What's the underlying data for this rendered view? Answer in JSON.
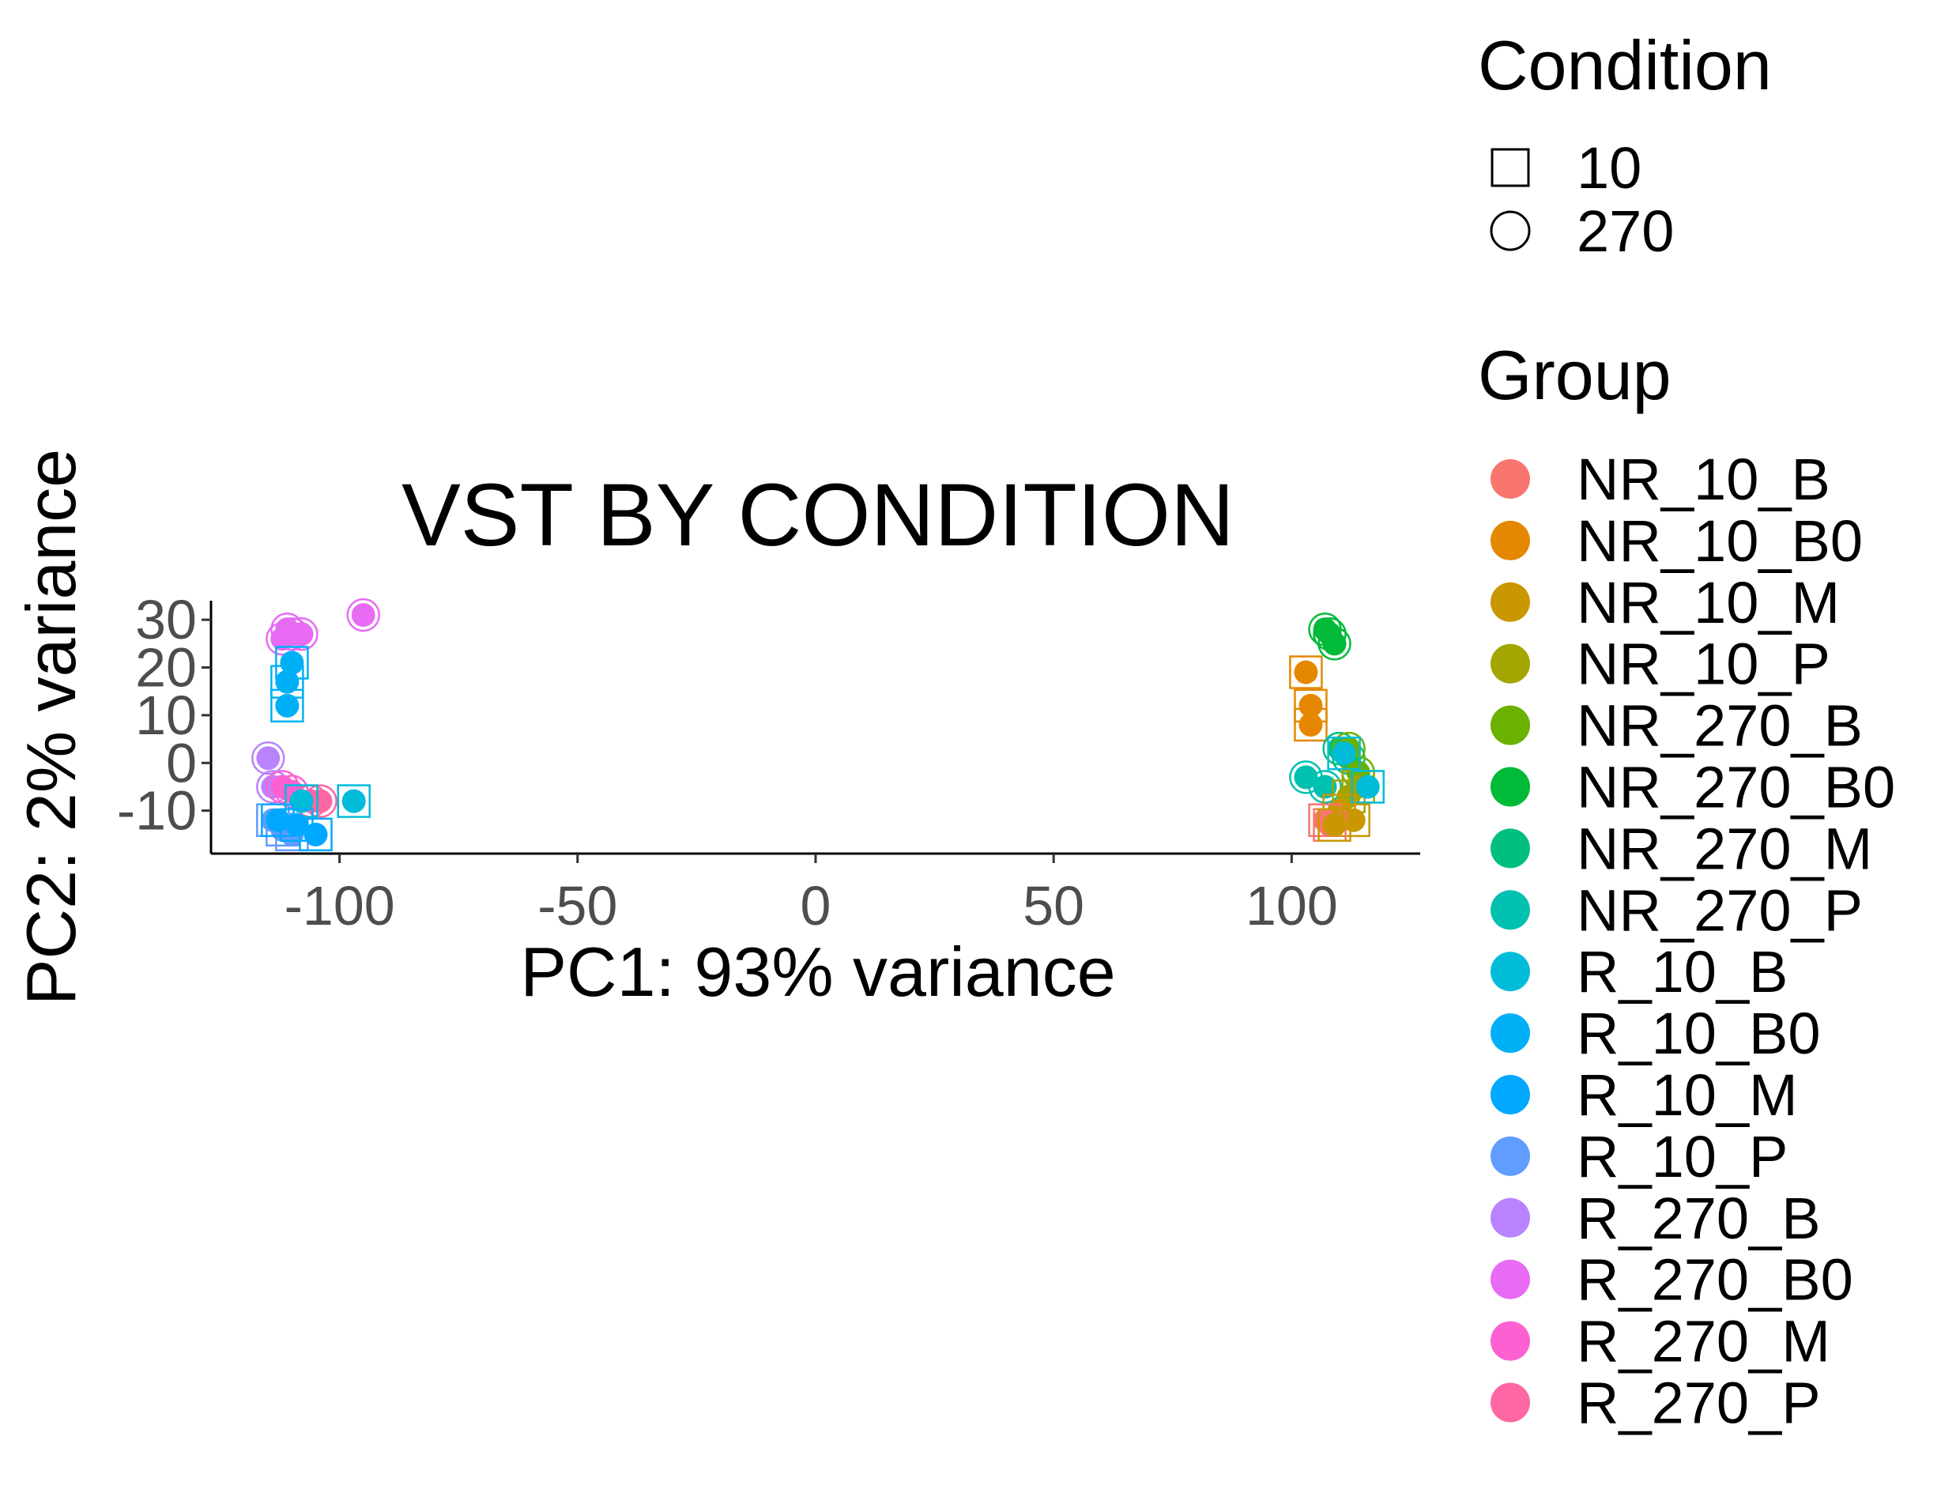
{
  "chart_data": {
    "type": "scatter",
    "title": "VST BY CONDITION",
    "xlabel": "PC1: 93% variance",
    "ylabel": "PC2: 2% variance",
    "xlim": [
      -127,
      127
    ],
    "ylim": [
      -19,
      34
    ],
    "xticks": [
      -100,
      -50,
      0,
      50,
      100
    ],
    "yticks": [
      -10,
      0,
      10,
      20,
      30
    ],
    "xtick_labels": [
      "-100",
      "-50",
      "0",
      "50",
      "100"
    ],
    "ytick_labels": [
      "-10",
      "0",
      "10",
      "20",
      "30"
    ],
    "grid": false,
    "legend_position": "right",
    "legend_condition": {
      "title": "Condition",
      "items": [
        {
          "label": "10",
          "shape": "square"
        },
        {
          "label": "270",
          "shape": "circle"
        }
      ]
    },
    "legend_group": {
      "title": "Group",
      "items": [
        {
          "label": "NR_10_B",
          "color": "#F8766D"
        },
        {
          "label": "NR_10_B0",
          "color": "#E58700"
        },
        {
          "label": "NR_10_M",
          "color": "#C99800"
        },
        {
          "label": "NR_10_P",
          "color": "#A3A500"
        },
        {
          "label": "NR_270_B",
          "color": "#6BB100"
        },
        {
          "label": "NR_270_B0",
          "color": "#00BA38"
        },
        {
          "label": "NR_270_M",
          "color": "#00BF7D"
        },
        {
          "label": "NR_270_P",
          "color": "#00C0AF"
        },
        {
          "label": "R_10_B",
          "color": "#00BCD8"
        },
        {
          "label": "R_10_B0",
          "color": "#00B0F6"
        },
        {
          "label": "R_10_M",
          "color": "#00A9FF"
        },
        {
          "label": "R_10_P",
          "color": "#619CFF"
        },
        {
          "label": "R_270_B",
          "color": "#B983FF"
        },
        {
          "label": "R_270_B0",
          "color": "#E76BF3"
        },
        {
          "label": "R_270_M",
          "color": "#FD61D1"
        },
        {
          "label": "R_270_P",
          "color": "#FF67A4"
        }
      ]
    },
    "points": [
      {
        "x": -112,
        "y": 26,
        "group": "R_270_B0",
        "condition": "270"
      },
      {
        "x": -111,
        "y": 28,
        "group": "R_270_B0",
        "condition": "270"
      },
      {
        "x": -110,
        "y": 27,
        "group": "R_270_B0",
        "condition": "270"
      },
      {
        "x": -108,
        "y": 27,
        "group": "R_270_B0",
        "condition": "270"
      },
      {
        "x": -95,
        "y": 31,
        "group": "R_270_B0",
        "condition": "270"
      },
      {
        "x": -110,
        "y": 21,
        "group": "R_10_B0",
        "condition": "10"
      },
      {
        "x": -111,
        "y": 17,
        "group": "R_10_B0",
        "condition": "10"
      },
      {
        "x": -111,
        "y": 12,
        "group": "R_10_B0",
        "condition": "10"
      },
      {
        "x": -115,
        "y": 1,
        "group": "R_270_B",
        "condition": "270"
      },
      {
        "x": -114,
        "y": -5,
        "group": "R_270_B",
        "condition": "270"
      },
      {
        "x": -112,
        "y": -5,
        "group": "R_270_M",
        "condition": "270"
      },
      {
        "x": -110,
        "y": -6,
        "group": "R_270_M",
        "condition": "270"
      },
      {
        "x": -106,
        "y": -8,
        "group": "R_270_P",
        "condition": "270"
      },
      {
        "x": -104,
        "y": -8,
        "group": "R_270_P",
        "condition": "270"
      },
      {
        "x": -97,
        "y": -8,
        "group": "R_10_B",
        "condition": "10"
      },
      {
        "x": -108,
        "y": -8,
        "group": "R_10_B",
        "condition": "10"
      },
      {
        "x": -114,
        "y": -12,
        "group": "R_10_P",
        "condition": "10"
      },
      {
        "x": -112,
        "y": -14,
        "group": "R_10_P",
        "condition": "10"
      },
      {
        "x": -110,
        "y": -15,
        "group": "R_10_P",
        "condition": "10"
      },
      {
        "x": -113,
        "y": -12,
        "group": "R_10_M",
        "condition": "10"
      },
      {
        "x": -109,
        "y": -13,
        "group": "R_10_M",
        "condition": "10"
      },
      {
        "x": -105,
        "y": -15,
        "group": "R_10_M",
        "condition": "10"
      },
      {
        "x": 103,
        "y": 19,
        "group": "NR_10_B0",
        "condition": "10"
      },
      {
        "x": 104,
        "y": 12,
        "group": "NR_10_B0",
        "condition": "10"
      },
      {
        "x": 104,
        "y": 8,
        "group": "NR_10_B0",
        "condition": "10"
      },
      {
        "x": 107,
        "y": 28,
        "group": "NR_270_B0",
        "condition": "270"
      },
      {
        "x": 108,
        "y": 27,
        "group": "NR_270_B0",
        "condition": "270"
      },
      {
        "x": 109,
        "y": 25,
        "group": "NR_270_B0",
        "condition": "270"
      },
      {
        "x": 103,
        "y": -3,
        "group": "NR_270_P",
        "condition": "270"
      },
      {
        "x": 107,
        "y": -5,
        "group": "NR_270_P",
        "condition": "270"
      },
      {
        "x": 110,
        "y": 3,
        "group": "NR_270_M",
        "condition": "270"
      },
      {
        "x": 112,
        "y": 1,
        "group": "NR_270_M",
        "condition": "270"
      },
      {
        "x": 112,
        "y": 3,
        "group": "NR_270_B",
        "condition": "270"
      },
      {
        "x": 114,
        "y": -2,
        "group": "NR_270_B",
        "condition": "270"
      },
      {
        "x": 111,
        "y": 2,
        "group": "R_10_B",
        "condition": "10"
      },
      {
        "x": 114,
        "y": -5,
        "group": "NR_10_P",
        "condition": "10"
      },
      {
        "x": 112,
        "y": -7,
        "group": "NR_10_P",
        "condition": "10"
      },
      {
        "x": 116,
        "y": -5,
        "group": "R_10_B",
        "condition": "10"
      },
      {
        "x": 110,
        "y": -10,
        "group": "NR_10_M",
        "condition": "10"
      },
      {
        "x": 113,
        "y": -12,
        "group": "NR_10_M",
        "condition": "10"
      },
      {
        "x": 107,
        "y": -12,
        "group": "NR_10_B",
        "condition": "10"
      },
      {
        "x": 108,
        "y": -13,
        "group": "NR_10_B",
        "condition": "10"
      },
      {
        "x": 109,
        "y": -13,
        "group": "NR_10_M",
        "condition": "10"
      }
    ]
  }
}
